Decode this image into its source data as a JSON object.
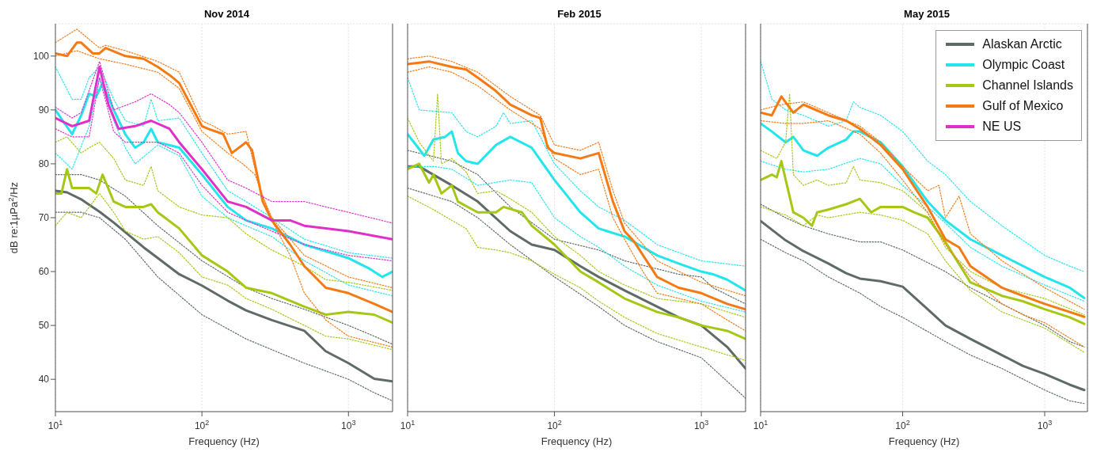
{
  "chart_data": [
    {
      "type": "line",
      "title": "Nov 2014",
      "xlabel": "Frequency (Hz)",
      "ylabel": "dB re:1µPa$^{2}$/Hz",
      "log": "x",
      "xlim": [
        10,
        2000
      ],
      "ylim": [
        34,
        106
      ],
      "xticks": [
        {
          "value": 10,
          "label": "10$^{1}$"
        },
        {
          "value": 100,
          "label": "10$^{2}$"
        },
        {
          "value": 1000,
          "label": "10$^{3}$"
        }
      ],
      "yticks": [
        40,
        50,
        60,
        70,
        80,
        90,
        100
      ],
      "grid": true,
      "legend": false,
      "marker": "none",
      "series": [
        {
          "color": "#5f6b66",
          "line_style": "solid",
          "x": [
            10,
            12,
            15,
            20,
            25,
            30,
            40,
            50,
            70,
            100,
            150,
            200,
            300,
            500,
            700,
            1000,
            1500,
            2000
          ],
          "values": [
            75,
            74.7,
            73.4,
            71.1,
            69.1,
            67.3,
            64.5,
            62.5,
            59.5,
            57.4,
            54.6,
            52.8,
            51,
            49,
            45.2,
            43,
            40.1,
            39.6
          ]
        },
        {
          "color": "#5f6b66",
          "line_style": "dotted",
          "x": [
            10,
            15,
            20,
            30,
            50,
            100,
            200,
            300,
            500,
            1000,
            1500,
            2000
          ],
          "values": [
            78,
            78,
            77,
            74,
            68.5,
            62,
            57,
            55,
            53,
            50,
            48,
            46.5
          ]
        },
        {
          "color": "#5f6b66",
          "line_style": "dotted",
          "x": [
            10,
            15,
            20,
            30,
            50,
            100,
            200,
            300,
            500,
            1000,
            1500,
            2000
          ],
          "values": [
            71,
            71,
            70,
            66,
            59,
            52,
            47.5,
            45.5,
            43,
            40,
            37.5,
            36
          ]
        },
        {
          "color": "#22e5ee",
          "line_style": "solid",
          "x": [
            10,
            13,
            15,
            17,
            19,
            21,
            25,
            30,
            35,
            40,
            45,
            50,
            70,
            100,
            150,
            200,
            300,
            500,
            1000,
            1400,
            1700,
            2000
          ],
          "values": [
            90,
            85.5,
            89,
            93,
            92.5,
            95,
            90,
            85.5,
            83,
            84,
            86.5,
            84,
            83,
            78,
            72,
            69.5,
            68,
            65,
            62.5,
            60.5,
            59,
            60
          ]
        },
        {
          "color": "#22e5ee",
          "line_style": "dotted",
          "x": [
            10,
            13,
            15,
            17,
            20,
            25,
            30,
            40,
            45,
            50,
            70,
            100,
            150,
            200,
            300,
            500,
            1000,
            2000
          ],
          "values": [
            98,
            92,
            92,
            96,
            98,
            92,
            88,
            87,
            92,
            88,
            88.5,
            82,
            75,
            73,
            70,
            66,
            63.5,
            62.5
          ]
        },
        {
          "color": "#22e5ee",
          "line_style": "dotted",
          "x": [
            10,
            13,
            17,
            20,
            25,
            30,
            35,
            50,
            70,
            100,
            150,
            200,
            300,
            500,
            1000,
            2000
          ],
          "values": [
            82,
            79,
            87,
            96,
            88,
            83,
            80,
            83.5,
            81.5,
            74,
            70,
            68.5,
            66.5,
            62,
            57.5,
            55.5
          ]
        },
        {
          "color": "#a4c814",
          "line_style": "solid",
          "x": [
            10,
            11,
            12,
            13,
            17,
            19,
            21,
            25,
            30,
            40,
            45,
            50,
            70,
            100,
            150,
            200,
            300,
            500,
            700,
            1000,
            1500,
            2000
          ],
          "values": [
            74.5,
            74.5,
            79,
            75.5,
            75.5,
            74.5,
            78,
            73,
            72,
            72,
            72.5,
            71,
            68,
            63,
            60,
            57,
            56,
            53.5,
            52,
            52.5,
            52,
            50.5
          ]
        },
        {
          "color": "#a4c814",
          "line_style": "dotted",
          "x": [
            10,
            12,
            15,
            17,
            20,
            25,
            30,
            40,
            45,
            50,
            70,
            100,
            150,
            200,
            300,
            500,
            700,
            1000,
            2000
          ],
          "values": [
            84,
            85,
            82,
            83,
            84,
            81,
            77,
            76,
            79.5,
            75,
            72,
            70.5,
            70,
            67,
            64,
            61,
            58.5,
            58,
            56.5
          ]
        },
        {
          "color": "#a4c814",
          "line_style": "dotted",
          "x": [
            10,
            12,
            15,
            20,
            25,
            30,
            40,
            50,
            70,
            100,
            150,
            200,
            300,
            500,
            700,
            1000,
            2000
          ],
          "values": [
            68.5,
            71,
            70,
            74.5,
            71,
            67.5,
            66,
            66.5,
            63.5,
            59,
            57.5,
            55,
            53,
            50,
            48,
            47.5,
            45.5
          ]
        },
        {
          "color": "#f57a14",
          "line_style": "solid",
          "x": [
            10,
            12,
            14,
            15,
            18,
            20,
            22,
            30,
            40,
            50,
            60,
            70,
            100,
            110,
            140,
            160,
            200,
            220,
            260,
            300,
            400,
            500,
            700,
            1000,
            1500,
            2000
          ],
          "values": [
            100.5,
            100,
            102.5,
            102.5,
            100.5,
            100.5,
            101.5,
            100,
            99.5,
            98,
            96.5,
            95,
            87,
            86.5,
            85.5,
            82,
            84,
            82.5,
            73,
            69.5,
            65,
            61,
            57,
            56,
            54,
            52.5
          ]
        },
        {
          "color": "#f57a14",
          "line_style": "dotted",
          "x": [
            10,
            14,
            20,
            22,
            30,
            50,
            70,
            100,
            120,
            150,
            200,
            250,
            300,
            500,
            1000,
            2000
          ],
          "values": [
            102.5,
            105,
            101.5,
            102,
            101,
            99,
            97,
            88,
            87,
            85.5,
            86,
            75,
            70,
            63,
            59,
            57
          ]
        },
        {
          "color": "#f57a14",
          "line_style": "dotted",
          "x": [
            10,
            14,
            20,
            30,
            50,
            70,
            100,
            150,
            190,
            230,
            300,
            400,
            500,
            700,
            1000,
            2000
          ],
          "values": [
            100,
            101,
            99.5,
            98.5,
            97,
            94,
            86,
            82,
            80,
            78,
            69.5,
            63,
            56,
            51,
            48,
            46
          ]
        },
        {
          "color": "#e030c8",
          "line_style": "solid",
          "x": [
            10,
            13,
            17,
            20,
            23,
            27,
            35,
            45,
            60,
            70,
            100,
            150,
            200,
            300,
            400,
            500,
            700,
            1000,
            2000
          ],
          "values": [
            88.5,
            87,
            88,
            98,
            91,
            86.5,
            87,
            88,
            86.5,
            84,
            79,
            73,
            72,
            69.5,
            69.5,
            68.5,
            68,
            67.5,
            66
          ]
        },
        {
          "color": "#e030c8",
          "line_style": "dotted",
          "x": [
            10,
            13,
            15,
            20,
            25,
            35,
            45,
            60,
            70,
            100,
            150,
            200,
            300,
            500,
            700,
            1000,
            2000
          ],
          "values": [
            90.5,
            88.5,
            89.5,
            99,
            90,
            91.5,
            93,
            91,
            89.5,
            84,
            77,
            75.5,
            73,
            73,
            72,
            71,
            69
          ]
        },
        {
          "color": "#e030c8",
          "line_style": "dotted",
          "x": [
            10,
            13,
            17,
            20,
            25,
            30,
            50,
            70,
            100,
            150,
            200,
            300,
            500,
            1000,
            2000
          ],
          "values": [
            86.5,
            85,
            85,
            96,
            86,
            84,
            84,
            82,
            76,
            71,
            69.5,
            67.5,
            65,
            63,
            62
          ]
        }
      ]
    },
    {
      "type": "line",
      "title": "Feb 2015",
      "xlabel": "Frequency (Hz)",
      "log": "x",
      "xlim": [
        10,
        2000
      ],
      "ylim": [
        34,
        106
      ],
      "xticks": [
        {
          "value": 10,
          "label": "10$^{1}$"
        },
        {
          "value": 100,
          "label": "10$^{2}$"
        },
        {
          "value": 1000,
          "label": "10$^{3}$"
        }
      ],
      "yticks": [
        40,
        50,
        60,
        70,
        80,
        90,
        100
      ],
      "tick_labels": "x",
      "grid": true,
      "legend": false,
      "marker": "none",
      "series": [
        {
          "color": "#5f6b66",
          "line_style": "solid",
          "x": [
            10,
            12,
            20,
            30,
            50,
            70,
            100,
            150,
            200,
            300,
            500,
            700,
            1000,
            1500,
            2000
          ],
          "values": [
            79.5,
            79.5,
            76,
            73,
            67.5,
            65,
            64,
            61,
            59,
            56.5,
            53.5,
            51.5,
            50,
            46,
            42
          ]
        },
        {
          "color": "#5f6b66",
          "line_style": "dotted",
          "x": [
            10,
            20,
            30,
            50,
            100,
            200,
            300,
            500,
            700,
            1000,
            1200,
            2000
          ],
          "values": [
            82.5,
            80.5,
            78,
            72,
            66,
            64,
            62,
            60.5,
            59.5,
            59,
            57,
            54
          ]
        },
        {
          "color": "#5f6b66",
          "line_style": "dotted",
          "x": [
            10,
            20,
            30,
            50,
            100,
            200,
            300,
            500,
            1000,
            2000
          ],
          "values": [
            75.5,
            73,
            70,
            65,
            59,
            53.5,
            50,
            47,
            44,
            36.5
          ]
        },
        {
          "color": "#22e5ee",
          "line_style": "solid",
          "x": [
            10,
            13,
            15,
            18,
            20,
            22,
            25,
            30,
            40,
            50,
            70,
            100,
            150,
            200,
            300,
            500,
            700,
            1000,
            1200,
            1500,
            2000
          ],
          "values": [
            85.5,
            81.5,
            84.5,
            85,
            86,
            82,
            80.5,
            80,
            83.5,
            85,
            83,
            77,
            71,
            68,
            66.5,
            63,
            61.5,
            60,
            59.5,
            58.5,
            56.5
          ]
        },
        {
          "color": "#22e5ee",
          "line_style": "dotted",
          "x": [
            10,
            12,
            20,
            25,
            30,
            40,
            45,
            50,
            70,
            100,
            150,
            200,
            300,
            400,
            500,
            1000,
            2000
          ],
          "values": [
            96,
            90,
            89.5,
            86,
            85,
            87,
            89.5,
            87.5,
            88,
            80,
            75,
            72,
            69.5,
            67,
            65,
            62,
            61
          ]
        },
        {
          "color": "#22e5ee",
          "line_style": "dotted",
          "x": [
            10,
            15,
            20,
            30,
            50,
            70,
            100,
            150,
            200,
            300,
            500,
            1000,
            2000
          ],
          "values": [
            79.5,
            79.5,
            79,
            76,
            77,
            76.5,
            70,
            66.5,
            64.5,
            61,
            57.5,
            54.5,
            52.5
          ]
        },
        {
          "color": "#a4c814",
          "line_style": "solid",
          "x": [
            10,
            12,
            14,
            15,
            17,
            20,
            22,
            30,
            40,
            45,
            60,
            70,
            100,
            150,
            200,
            300,
            500,
            700,
            1000,
            1500,
            2000
          ],
          "values": [
            79,
            80,
            76.5,
            78,
            74.5,
            76,
            73,
            71,
            71,
            72,
            71,
            68.5,
            65,
            60,
            58,
            55,
            52.5,
            51.5,
            50,
            49,
            47.5
          ]
        },
        {
          "color": "#a4c814",
          "line_style": "dotted",
          "x": [
            10,
            12,
            15,
            16,
            17,
            20,
            25,
            30,
            40,
            50,
            70,
            100,
            150,
            200,
            300,
            500,
            1000,
            2000
          ],
          "values": [
            88.5,
            84,
            80.5,
            93,
            80,
            81,
            78.5,
            74.5,
            75,
            73.5,
            71,
            66.5,
            63,
            60,
            57.5,
            55,
            54,
            51.5
          ]
        },
        {
          "color": "#a4c814",
          "line_style": "dotted",
          "x": [
            10,
            15,
            20,
            25,
            30,
            40,
            50,
            70,
            100,
            150,
            200,
            300,
            500,
            1000,
            2000
          ],
          "values": [
            74,
            71.5,
            69.5,
            68,
            64.5,
            64,
            63.5,
            62,
            59.5,
            57,
            54.5,
            51.5,
            48.5,
            46,
            43.5
          ]
        },
        {
          "color": "#f57a14",
          "line_style": "solid",
          "x": [
            10,
            14,
            20,
            25,
            30,
            40,
            50,
            70,
            80,
            90,
            100,
            150,
            200,
            250,
            300,
            350,
            500,
            700,
            1000,
            1500,
            2000
          ],
          "values": [
            98.5,
            99,
            98,
            97.5,
            96,
            93.5,
            91,
            89,
            88.5,
            83,
            82,
            81,
            82,
            73,
            67.5,
            65.5,
            59,
            57,
            56,
            54,
            53
          ]
        },
        {
          "color": "#f57a14",
          "line_style": "dotted",
          "x": [
            10,
            14,
            20,
            30,
            50,
            80,
            100,
            150,
            200,
            250,
            300,
            500,
            1000,
            2000
          ],
          "values": [
            99.5,
            100,
            99,
            97,
            92.5,
            89,
            83.5,
            82.5,
            84,
            75,
            69,
            62,
            58,
            55.5
          ]
        },
        {
          "color": "#f57a14",
          "line_style": "dotted",
          "x": [
            10,
            14,
            20,
            30,
            50,
            80,
            100,
            150,
            200,
            250,
            300,
            400,
            500,
            1000,
            1500,
            2000
          ],
          "values": [
            97,
            98,
            97,
            94.5,
            90,
            86.5,
            81,
            78,
            79,
            70,
            66,
            60,
            56,
            54,
            51,
            49
          ]
        }
      ]
    },
    {
      "type": "line",
      "title": "May 2015",
      "xlabel": "Frequency (Hz)",
      "log": "x",
      "xlim": [
        10,
        2000
      ],
      "ylim": [
        34,
        106
      ],
      "xticks": [
        {
          "value": 10,
          "label": "10$^{1}$"
        },
        {
          "value": 100,
          "label": "10$^{2}$"
        },
        {
          "value": 1000,
          "label": "10$^{3}$"
        }
      ],
      "yticks": [
        40,
        50,
        60,
        70,
        80,
        90,
        100
      ],
      "tick_labels": "x",
      "grid": true,
      "legend": "top right",
      "marker": "none",
      "series": [
        {
          "name": "Alaskan Arctic",
          "color": "#5f6b66",
          "line_style": "solid",
          "x": [
            10,
            15,
            20,
            30,
            40,
            50,
            70,
            100,
            150,
            200,
            300,
            500,
            700,
            1000,
            1500,
            1900
          ],
          "values": [
            69.4,
            65.8,
            63.8,
            61.5,
            59.7,
            58.7,
            58.2,
            57.2,
            53,
            50,
            47.5,
            44.5,
            42.5,
            41,
            39,
            38
          ]
        },
        {
          "color": "#5f6b66",
          "line_style": "dotted",
          "x": [
            10,
            15,
            20,
            30,
            50,
            70,
            100,
            200,
            300,
            500,
            1000,
            1500,
            1900
          ],
          "values": [
            72.5,
            70,
            68.5,
            67,
            65.5,
            65.5,
            64,
            60,
            57,
            54,
            50,
            47,
            46
          ]
        },
        {
          "color": "#5f6b66",
          "line_style": "dotted",
          "x": [
            10,
            15,
            20,
            30,
            50,
            70,
            100,
            200,
            300,
            500,
            1000,
            1500,
            1900
          ],
          "values": [
            66,
            63.5,
            62,
            59,
            56,
            53.5,
            51.5,
            47,
            44.5,
            42,
            38,
            36,
            35.5
          ]
        },
        {
          "name": "Olympic Coast",
          "color": "#22e5ee",
          "line_style": "solid",
          "x": [
            10,
            12,
            15,
            17,
            20,
            25,
            30,
            40,
            45,
            50,
            70,
            100,
            150,
            200,
            300,
            500,
            1000,
            1500,
            1900
          ],
          "values": [
            87.5,
            86,
            84,
            85,
            82.5,
            81.5,
            83,
            84.5,
            86,
            86,
            84,
            79.5,
            73,
            69.5,
            66,
            63,
            59,
            57,
            55.1
          ]
        },
        {
          "color": "#22e5ee",
          "line_style": "dotted",
          "x": [
            10,
            12,
            15,
            20,
            30,
            40,
            45,
            50,
            70,
            100,
            150,
            200,
            300,
            500,
            1000,
            1500,
            1900
          ],
          "values": [
            99,
            92,
            90,
            89,
            87,
            88,
            91.5,
            90.5,
            89,
            86,
            80.5,
            78,
            73,
            68.5,
            63,
            61,
            60
          ]
        },
        {
          "color": "#22e5ee",
          "line_style": "dotted",
          "x": [
            10,
            15,
            20,
            30,
            50,
            70,
            100,
            150,
            200,
            300,
            500,
            1000,
            1900
          ],
          "values": [
            80.5,
            79,
            78.5,
            79,
            81,
            80,
            76,
            72,
            69,
            64.5,
            61,
            57.5,
            54.5
          ]
        },
        {
          "name": "Channel Islands",
          "color": "#a4c814",
          "line_style": "solid",
          "x": [
            10,
            12,
            13,
            14,
            17,
            20,
            23,
            25,
            30,
            40,
            50,
            60,
            70,
            100,
            120,
            150,
            200,
            300,
            500,
            700,
            1000,
            1500,
            1900
          ],
          "values": [
            77,
            78,
            77.5,
            80.5,
            71,
            70,
            68.5,
            71,
            71.5,
            72.5,
            73.5,
            71,
            72,
            72,
            71,
            70,
            65.5,
            58,
            55.5,
            54.5,
            53,
            51.5,
            50.3
          ]
        },
        {
          "color": "#a4c814",
          "line_style": "dotted",
          "x": [
            10,
            13,
            15,
            16,
            17,
            20,
            25,
            30,
            40,
            45,
            50,
            70,
            100,
            150,
            200,
            300,
            500,
            1000,
            1900
          ],
          "values": [
            82.5,
            81,
            84,
            93,
            78,
            76,
            77,
            76,
            76.5,
            79.5,
            77,
            76.5,
            75,
            71,
            64.5,
            60,
            57,
            55,
            52
          ]
        },
        {
          "color": "#a4c814",
          "line_style": "dotted",
          "x": [
            10,
            15,
            20,
            25,
            30,
            50,
            70,
            100,
            150,
            200,
            300,
            500,
            1000,
            1900
          ],
          "values": [
            72,
            70.5,
            68.5,
            70.5,
            70,
            71,
            70.5,
            69.5,
            67,
            62,
            56.5,
            52.5,
            49.5,
            45
          ]
        },
        {
          "name": "Gulf of Mexico",
          "color": "#f57a14",
          "line_style": "solid",
          "x": [
            10,
            12,
            14,
            17,
            20,
            30,
            40,
            50,
            70,
            100,
            150,
            200,
            250,
            300,
            500,
            700,
            1000,
            1500,
            1900
          ],
          "values": [
            89.5,
            89,
            92.5,
            89.5,
            91,
            89,
            88,
            86.5,
            83.5,
            79,
            72,
            66,
            64.5,
            61,
            57,
            55.5,
            54,
            52.5,
            51.6
          ]
        },
        {
          "color": "#f57a14",
          "line_style": "dotted",
          "x": [
            10,
            14,
            20,
            30,
            50,
            70,
            100,
            150,
            180,
            200,
            250,
            300,
            500,
            1000,
            1900
          ],
          "values": [
            90,
            91,
            91.5,
            89.5,
            87,
            84,
            79.5,
            75,
            76,
            70,
            74,
            67,
            62,
            57,
            53
          ]
        },
        {
          "color": "#f57a14",
          "line_style": "dotted",
          "x": [
            10,
            15,
            20,
            30,
            50,
            70,
            100,
            150,
            200,
            300,
            500,
            700,
            1000,
            1900
          ],
          "values": [
            88,
            87.5,
            87.5,
            88,
            85.5,
            82,
            77,
            71,
            65,
            59,
            54,
            52,
            50.5,
            46
          ]
        },
        {
          "name": "NE US",
          "color": "#e030c8",
          "line_style": "solid"
        }
      ]
    }
  ]
}
